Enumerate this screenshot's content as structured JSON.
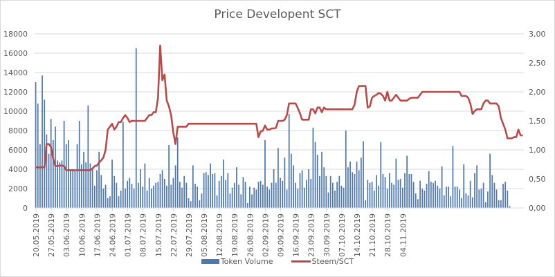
{
  "chart_data": {
    "type": "bar+line",
    "title": "Price Developent SCT",
    "xlabel": "",
    "ylabel_left": "",
    "ylabel_right": "",
    "ylim_left": [
      0,
      18000
    ],
    "ylim_right": [
      0,
      3.0
    ],
    "yticks_left": [
      "0",
      "2000",
      "4000",
      "6000",
      "8000",
      "10000",
      "12000",
      "14000",
      "16000",
      "18000"
    ],
    "yticks_right": [
      "0,00",
      "0,50",
      "1,00",
      "1,50",
      "2,00",
      "2,50",
      "3,00"
    ],
    "xticks": [
      "20.05.2019",
      "27.05.2019",
      "03.06.2019",
      "10.06.2019",
      "17.06.2019",
      "24.06.2019",
      "01.07.2019",
      "08.07.2019",
      "15.07.2019",
      "22.07.2019",
      "29.07.2019",
      "05.08.2019",
      "12.08.2019",
      "19.08.2019",
      "26.08.2019",
      "02.09.2019",
      "09.09.2019",
      "16.09.2019",
      "23.09.2019",
      "30.09.2019",
      "07.10.2019",
      "14.10.2019",
      "21.10.2019",
      "28.10.2019",
      "04.11.2019"
    ],
    "grid": true,
    "legend_position": "bottom",
    "series": [
      {
        "name": "Token Volume",
        "type": "bar",
        "axis": "left",
        "color": "#4e79b0",
        "values": [
          13000,
          10800,
          6600,
          13700,
          11200,
          7600,
          5600,
          9200,
          7000,
          8400,
          4900,
          4700,
          4900,
          9000,
          6600,
          7000,
          4000,
          4000,
          3800,
          6600,
          9000,
          4500,
          5800,
          4700,
          10600,
          4600,
          4000,
          2300,
          3900,
          5800,
          3400,
          2000,
          2400,
          1000,
          1200,
          5000,
          3300,
          2600,
          1200,
          1800,
          8900,
          2000,
          2800,
          3100,
          2500,
          2000,
          16500,
          2600,
          4000,
          2200,
          4600,
          1800,
          3100,
          2000,
          2300,
          2600,
          2700,
          3500,
          3900,
          3000,
          2300,
          6500,
          2400,
          3100,
          4400,
          7300,
          2700,
          2100,
          3300,
          2600,
          1000,
          700,
          4400,
          2500,
          2200,
          800,
          1500,
          3600,
          3700,
          3400,
          4600,
          3500,
          3600,
          1300,
          2800,
          3300,
          5000,
          2900,
          3600,
          1500,
          2100,
          2600,
          4200,
          2400,
          1400,
          3200,
          2700,
          500,
          2200,
          1400,
          2100,
          1900,
          2700,
          2800,
          2400,
          7000,
          2200,
          1900,
          2600,
          4000,
          2600,
          6200,
          3100,
          2800,
          5200,
          1900,
          9700,
          5600,
          4400,
          2600,
          2000,
          3600,
          3900,
          2100,
          2900,
          4000,
          3000,
          8300,
          6800,
          5500,
          3300,
          5800,
          4200,
          3300,
          1600,
          3300,
          2600,
          1800,
          2700,
          3300,
          2300,
          2100,
          8000,
          4200,
          4800,
          3700,
          3500,
          4800,
          3900,
          5200,
          6900,
          800,
          2900,
          2600,
          2700,
          1800,
          3400,
          2300,
          6800,
          3500,
          3200,
          2000,
          3600,
          2600,
          2400,
          5100,
          2900,
          3000,
          2100,
          3600,
          5400,
          3500,
          3500,
          2700,
          1500,
          900,
          2800,
          2000,
          1800,
          2500,
          3800,
          2700,
          2600,
          2800,
          2300,
          2000,
          4300,
          1300,
          2200,
          2200,
          1200,
          6400,
          2200,
          2200,
          1900,
          1000,
          4500,
          1500,
          1300,
          2800,
          1100,
          3600,
          4400,
          1900,
          2000,
          2600,
          600,
          1700,
          5600,
          3400,
          2600,
          1900,
          800,
          800,
          2500,
          2700,
          1800,
          200
        ],
        "x": "days since 20.05.2019"
      },
      {
        "name": "Steem/SCT",
        "type": "line",
        "axis": "right",
        "color": "#b94a48",
        "values": [
          0.7,
          0.7,
          0.7,
          0.7,
          0.7,
          1.1,
          1.1,
          1.05,
          0.85,
          0.72,
          0.72,
          0.73,
          0.73,
          0.72,
          0.65,
          0.65,
          0.65,
          0.65,
          0.65,
          0.65,
          0.65,
          0.65,
          0.65,
          0.65,
          0.65,
          0.65,
          0.68,
          0.72,
          0.73,
          0.78,
          0.82,
          0.87,
          1.0,
          1.35,
          1.4,
          1.45,
          1.35,
          1.4,
          1.48,
          1.48,
          1.55,
          1.6,
          1.55,
          1.48,
          1.5,
          1.5,
          1.5,
          1.5,
          1.5,
          1.5,
          1.5,
          1.55,
          1.6,
          1.6,
          1.65,
          1.65,
          1.9,
          2.8,
          2.2,
          2.3,
          1.85,
          1.75,
          1.6,
          1.3,
          1.1,
          1.4,
          1.4,
          1.4,
          1.4,
          1.4,
          1.45,
          1.45,
          1.45,
          1.45,
          1.45,
          1.45,
          1.45,
          1.45,
          1.45,
          1.45,
          1.45,
          1.45,
          1.45,
          1.45,
          1.45,
          1.45,
          1.45,
          1.45,
          1.45,
          1.45,
          1.45,
          1.45,
          1.45,
          1.45,
          1.45,
          1.45,
          1.45,
          1.45,
          1.45,
          1.45,
          1.45,
          1.45,
          1.22,
          1.32,
          1.33,
          1.42,
          1.35,
          1.35,
          1.37,
          1.37,
          1.38,
          1.5,
          1.5,
          1.5,
          1.52,
          1.6,
          1.8,
          1.8,
          1.8,
          1.8,
          1.72,
          1.63,
          1.52,
          1.52,
          1.52,
          1.52,
          1.7,
          1.7,
          1.63,
          1.73,
          1.73,
          1.65,
          1.73,
          1.7,
          1.7,
          1.7,
          1.7,
          1.7,
          1.7,
          1.7,
          1.7,
          1.7,
          1.7,
          1.7,
          1.7,
          1.7,
          1.78,
          2.0,
          2.1,
          2.1,
          2.1,
          2.1,
          1.73,
          1.75,
          1.9,
          1.93,
          1.95,
          1.98,
          1.97,
          1.93,
          1.85,
          2.0,
          1.85,
          1.85,
          1.9,
          1.95,
          1.9,
          1.85,
          1.85,
          1.85,
          1.85,
          1.88,
          1.9,
          1.9,
          1.9,
          1.9,
          1.95,
          2.0,
          2.0,
          2.0,
          2.0,
          2.0,
          2.0,
          2.0,
          2.0,
          2.0,
          2.0,
          2.0,
          2.0,
          2.0,
          2.0,
          2.0,
          2.0,
          2.0,
          2.0,
          1.93,
          1.93,
          1.93,
          1.9,
          1.8,
          1.62,
          1.67,
          1.7,
          1.7,
          1.7,
          1.8,
          1.85,
          1.85,
          1.8,
          1.8,
          1.8,
          1.8,
          1.75,
          1.55,
          1.45,
          1.35,
          1.2,
          1.2,
          1.2,
          1.22,
          1.22,
          1.35,
          1.25,
          1.25
        ],
        "x": "days since 20.05.2019"
      }
    ]
  }
}
